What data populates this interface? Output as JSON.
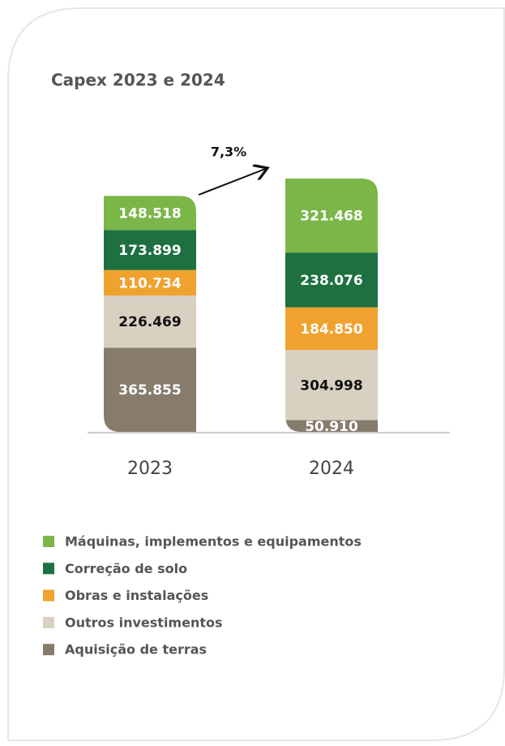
{
  "chart_data": {
    "type": "stacked_bar",
    "title": "Capex 2023 e 2024",
    "categories": [
      "2023",
      "2024"
    ],
    "annotations": [
      {
        "text": "7,3%"
      }
    ],
    "series": [
      {
        "name": "Máquinas, implementos e equipamentos",
        "color": "#7ab648",
        "label_color": "#ffffff",
        "values": [
          148518,
          321468
        ],
        "value_labels": [
          "148.518",
          "321.468"
        ]
      },
      {
        "name": "Correção de solo",
        "color": "#1e7040",
        "label_color": "#ffffff",
        "values": [
          173899,
          238076
        ],
        "value_labels": [
          "173.899",
          "238.076"
        ]
      },
      {
        "name": "Obras e instalações",
        "color": "#f0a22e",
        "label_color": "#ffffff",
        "values": [
          110734,
          184850
        ],
        "value_labels": [
          "110.734",
          "184.850"
        ]
      },
      {
        "name": "Outros investimentos",
        "color": "#d8d1c1",
        "label_color": "#111111",
        "values": [
          226469,
          304998
        ],
        "value_labels": [
          "226.469",
          "304.998"
        ]
      },
      {
        "name": "Aquisição de terras",
        "color": "#877c6c",
        "label_color": "#ffffff",
        "values": [
          365855,
          50910
        ],
        "value_labels": [
          "365.855",
          "50.910"
        ]
      }
    ],
    "legend": "bottom-left"
  }
}
